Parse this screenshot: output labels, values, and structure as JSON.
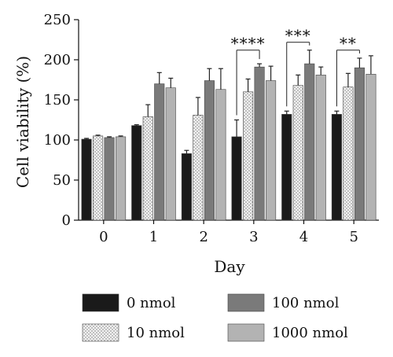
{
  "chart_data": {
    "type": "bar",
    "xlabel": "Day",
    "ylabel": "Cell viability (%)",
    "categories": [
      "0",
      "1",
      "2",
      "3",
      "4",
      "5"
    ],
    "ylim": [
      0,
      250
    ],
    "yticks": [
      0,
      50,
      100,
      150,
      200,
      250
    ],
    "grid": false,
    "legend_position": "bottom",
    "series": [
      {
        "name": "0 nmol",
        "pattern": "solid-dark",
        "color": "#1a1a1a",
        "values": [
          101,
          118,
          83,
          104,
          132,
          132
        ],
        "errors": [
          1,
          1,
          4,
          21,
          4,
          4
        ]
      },
      {
        "name": "10 nmol",
        "pattern": "dotted-light",
        "color": "#e6e6e6",
        "values": [
          105,
          129,
          131,
          160,
          168,
          166
        ],
        "errors": [
          1,
          15,
          22,
          16,
          13,
          17
        ]
      },
      {
        "name": "100 nmol",
        "pattern": "solid-gray",
        "color": "#7a7a7a",
        "values": [
          103,
          170,
          174,
          191,
          195,
          190
        ],
        "errors": [
          1,
          14,
          15,
          4,
          17,
          12
        ]
      },
      {
        "name": "1000 nmol",
        "pattern": "solid-lightgray",
        "color": "#b3b3b3",
        "values": [
          104,
          165,
          163,
          174,
          181,
          182
        ],
        "errors": [
          1,
          12,
          26,
          18,
          10,
          23
        ]
      }
    ],
    "annotations": [
      {
        "category": "3",
        "text": "****"
      },
      {
        "category": "4",
        "text": "***"
      },
      {
        "category": "5",
        "text": "**"
      }
    ]
  }
}
